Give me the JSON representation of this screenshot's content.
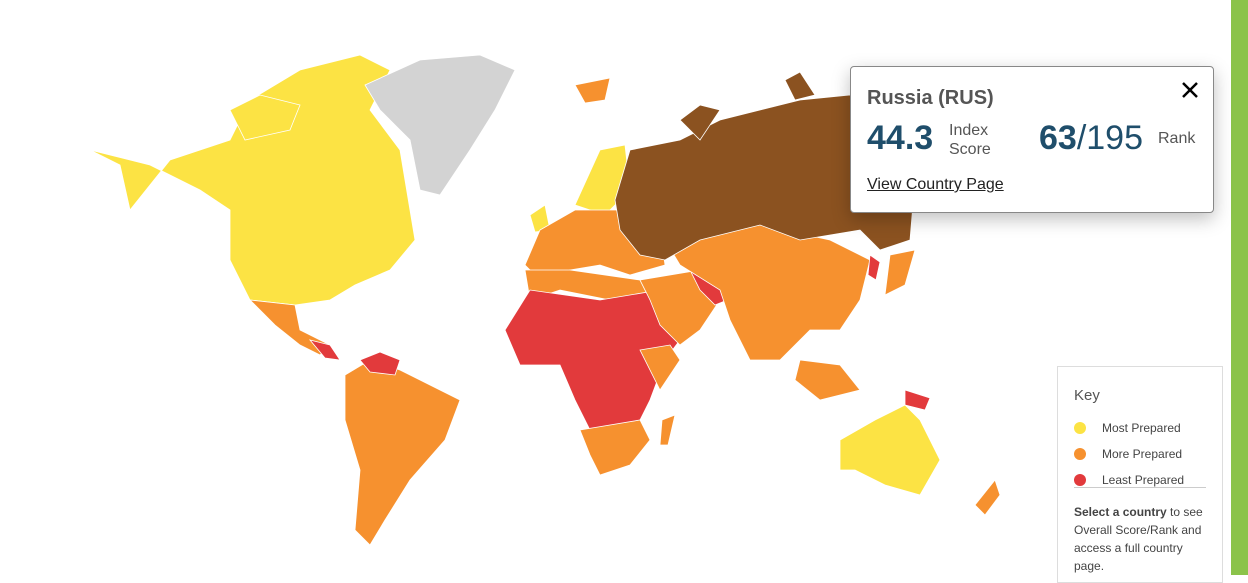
{
  "tooltip": {
    "country": "Russia (RUS)",
    "score": 44.3,
    "score_label": "Index Score",
    "rank": 63,
    "rank_total": "/195",
    "rank_label": "Rank",
    "link": "View Country Page"
  },
  "key": {
    "title": "Key",
    "items": [
      {
        "label": "Most Prepared",
        "color": "#fce344"
      },
      {
        "label": "More Prepared",
        "color": "#f6912f"
      },
      {
        "label": "Least Prepared",
        "color": "#e23a3c"
      }
    ],
    "note_bold": "Select a country",
    "note": " to see Overall Score/Rank and access a full country page."
  },
  "selected_color": "#8b5220",
  "no_data_color": "#d3d3d3"
}
